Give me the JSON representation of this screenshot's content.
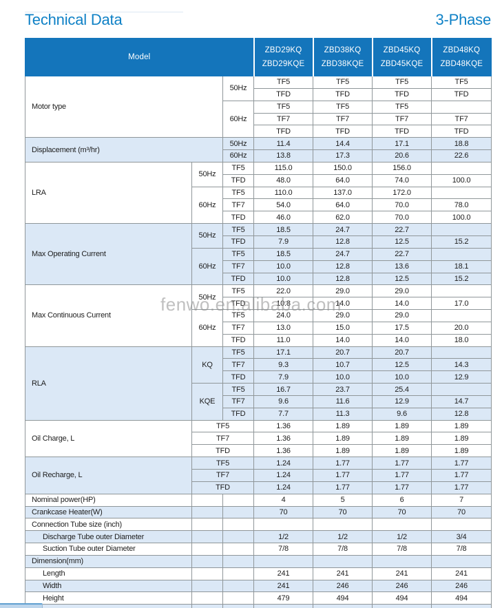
{
  "page": {
    "title": "Technical Data",
    "phase_label": "3-Phase",
    "watermark": "fenwo.en.alibaba.com",
    "colors": {
      "title_blue": "#0f81c6",
      "header_bg": "#1475bb",
      "alt_row_bg": "#dbe8f6",
      "border_gray": "#8f9699"
    }
  },
  "table": {
    "model_header": "Model",
    "model_columns": [
      {
        "line1": "ZBD29KQ",
        "line2": "ZBD29KQE"
      },
      {
        "line1": "ZBD38KQ",
        "line2": "ZBD38KQE"
      },
      {
        "line1": "ZBD45KQ",
        "line2": "ZBD45KQE"
      },
      {
        "line1": "ZBD48KQ",
        "line2": "ZBD48KQE"
      }
    ],
    "rows": [
      {
        "alt": false,
        "cells": [
          {
            "t": "Motor type",
            "cs": 2,
            "rs": 5,
            "k": "label"
          },
          {
            "t": "50Hz",
            "rs": 2,
            "k": "sub"
          },
          {
            "t": "TF5"
          },
          {
            "t": "TF5"
          },
          {
            "t": "TF5"
          },
          {
            "t": "TF5"
          }
        ]
      },
      {
        "alt": false,
        "cells": [
          {
            "t": "TFD"
          },
          {
            "t": "TFD"
          },
          {
            "t": "TFD"
          },
          {
            "t": "TFD"
          }
        ]
      },
      {
        "alt": false,
        "cells": [
          {
            "t": "60Hz",
            "rs": 3,
            "k": "sub"
          },
          {
            "t": "TF5"
          },
          {
            "t": "TF5"
          },
          {
            "t": "TF5"
          },
          {
            "t": ""
          }
        ]
      },
      {
        "alt": false,
        "cells": [
          {
            "t": "TF7"
          },
          {
            "t": "TF7"
          },
          {
            "t": "TF7"
          },
          {
            "t": "TF7"
          }
        ]
      },
      {
        "alt": false,
        "cells": [
          {
            "t": "TFD"
          },
          {
            "t": "TFD"
          },
          {
            "t": "TFD"
          },
          {
            "t": "TFD"
          }
        ]
      },
      {
        "alt": true,
        "cells": [
          {
            "t": "Displacement (m³/hr)",
            "cs": 2,
            "rs": 2,
            "k": "label"
          },
          {
            "t": "50Hz",
            "k": "sub"
          },
          {
            "t": "11.4"
          },
          {
            "t": "14.4"
          },
          {
            "t": "17.1"
          },
          {
            "t": "18.8"
          }
        ]
      },
      {
        "alt": true,
        "cells": [
          {
            "t": "60Hz",
            "k": "sub"
          },
          {
            "t": "13.8"
          },
          {
            "t": "17.3"
          },
          {
            "t": "20.6"
          },
          {
            "t": "22.6"
          }
        ]
      },
      {
        "alt": false,
        "cells": [
          {
            "t": "LRA",
            "rs": 5,
            "k": "label"
          },
          {
            "t": "50Hz",
            "rs": 2,
            "k": "sub"
          },
          {
            "t": "TF5",
            "k": "sub"
          },
          {
            "t": "115.0"
          },
          {
            "t": "150.0"
          },
          {
            "t": "156.0"
          },
          {
            "t": ""
          }
        ]
      },
      {
        "alt": false,
        "cells": [
          {
            "t": "TFD",
            "k": "sub"
          },
          {
            "t": "48.0"
          },
          {
            "t": "64.0"
          },
          {
            "t": "74.0"
          },
          {
            "t": "100.0"
          }
        ]
      },
      {
        "alt": false,
        "cells": [
          {
            "t": "60Hz",
            "rs": 3,
            "k": "sub"
          },
          {
            "t": "TF5",
            "k": "sub"
          },
          {
            "t": "110.0"
          },
          {
            "t": "137.0"
          },
          {
            "t": "172.0"
          },
          {
            "t": ""
          }
        ]
      },
      {
        "alt": false,
        "cells": [
          {
            "t": "TF7",
            "k": "sub"
          },
          {
            "t": "54.0"
          },
          {
            "t": "64.0"
          },
          {
            "t": "70.0"
          },
          {
            "t": "78.0"
          }
        ]
      },
      {
        "alt": false,
        "cells": [
          {
            "t": "TFD",
            "k": "sub"
          },
          {
            "t": "46.0"
          },
          {
            "t": "62.0"
          },
          {
            "t": "70.0"
          },
          {
            "t": "100.0"
          }
        ]
      },
      {
        "alt": true,
        "cells": [
          {
            "t": "Max Operating Current",
            "rs": 5,
            "k": "label"
          },
          {
            "t": "50Hz",
            "rs": 2,
            "k": "sub"
          },
          {
            "t": "TF5",
            "k": "sub"
          },
          {
            "t": "18.5"
          },
          {
            "t": "24.7"
          },
          {
            "t": "22.7"
          },
          {
            "t": ""
          }
        ]
      },
      {
        "alt": true,
        "cells": [
          {
            "t": "TFD",
            "k": "sub"
          },
          {
            "t": "7.9"
          },
          {
            "t": "12.8"
          },
          {
            "t": "12.5"
          },
          {
            "t": "15.2"
          }
        ]
      },
      {
        "alt": true,
        "cells": [
          {
            "t": "60Hz",
            "rs": 3,
            "k": "sub"
          },
          {
            "t": "TF5",
            "k": "sub"
          },
          {
            "t": "18.5"
          },
          {
            "t": "24.7"
          },
          {
            "t": "22.7"
          },
          {
            "t": ""
          }
        ]
      },
      {
        "alt": true,
        "cells": [
          {
            "t": "TF7",
            "k": "sub"
          },
          {
            "t": "10.0"
          },
          {
            "t": "12.8"
          },
          {
            "t": "13.6"
          },
          {
            "t": "18.1"
          }
        ]
      },
      {
        "alt": true,
        "cells": [
          {
            "t": "TFD",
            "k": "sub"
          },
          {
            "t": "10.0"
          },
          {
            "t": "12.8"
          },
          {
            "t": "12.5"
          },
          {
            "t": "15.2"
          }
        ]
      },
      {
        "alt": false,
        "cells": [
          {
            "t": "Max Continuous Current",
            "rs": 5,
            "k": "label"
          },
          {
            "t": "50Hz",
            "rs": 2,
            "k": "sub"
          },
          {
            "t": "TF5",
            "k": "sub"
          },
          {
            "t": "22.0"
          },
          {
            "t": "29.0"
          },
          {
            "t": "29.0"
          },
          {
            "t": ""
          }
        ]
      },
      {
        "alt": false,
        "cells": [
          {
            "t": "TFD",
            "k": "sub"
          },
          {
            "t": "10.8"
          },
          {
            "t": "14.0"
          },
          {
            "t": "14.0"
          },
          {
            "t": "17.0"
          }
        ]
      },
      {
        "alt": false,
        "cells": [
          {
            "t": "60Hz",
            "rs": 3,
            "k": "sub"
          },
          {
            "t": "TF5",
            "k": "sub"
          },
          {
            "t": "24.0"
          },
          {
            "t": "29.0"
          },
          {
            "t": "29.0"
          },
          {
            "t": ""
          }
        ]
      },
      {
        "alt": false,
        "cells": [
          {
            "t": "TF7",
            "k": "sub"
          },
          {
            "t": "13.0"
          },
          {
            "t": "15.0"
          },
          {
            "t": "17.5"
          },
          {
            "t": "20.0"
          }
        ]
      },
      {
        "alt": false,
        "cells": [
          {
            "t": "TFD",
            "k": "sub"
          },
          {
            "t": "11.0"
          },
          {
            "t": "14.0"
          },
          {
            "t": "14.0"
          },
          {
            "t": "18.0"
          }
        ]
      },
      {
        "alt": true,
        "cells": [
          {
            "t": "RLA",
            "rs": 6,
            "k": "label"
          },
          {
            "t": "KQ",
            "rs": 3,
            "k": "sub"
          },
          {
            "t": "TF5",
            "k": "sub"
          },
          {
            "t": "17.1"
          },
          {
            "t": "20.7"
          },
          {
            "t": "20.7"
          },
          {
            "t": ""
          }
        ]
      },
      {
        "alt": true,
        "cells": [
          {
            "t": "TF7",
            "k": "sub"
          },
          {
            "t": "9.3"
          },
          {
            "t": "10.7"
          },
          {
            "t": "12.5"
          },
          {
            "t": "14.3"
          }
        ]
      },
      {
        "alt": true,
        "cells": [
          {
            "t": "TFD",
            "k": "sub"
          },
          {
            "t": "7.9"
          },
          {
            "t": "10.0"
          },
          {
            "t": "10.0"
          },
          {
            "t": "12.9"
          }
        ]
      },
      {
        "alt": true,
        "cells": [
          {
            "t": "KQE",
            "rs": 3,
            "k": "sub"
          },
          {
            "t": "TF5",
            "k": "sub"
          },
          {
            "t": "16.7"
          },
          {
            "t": "23.7"
          },
          {
            "t": "25.4"
          },
          {
            "t": ""
          }
        ]
      },
      {
        "alt": true,
        "cells": [
          {
            "t": "TF7",
            "k": "sub"
          },
          {
            "t": "9.6"
          },
          {
            "t": "11.6"
          },
          {
            "t": "12.9"
          },
          {
            "t": "14.7"
          }
        ]
      },
      {
        "alt": true,
        "cells": [
          {
            "t": "TFD",
            "k": "sub"
          },
          {
            "t": "7.7"
          },
          {
            "t": "11.3"
          },
          {
            "t": "9.6"
          },
          {
            "t": "12.8"
          }
        ]
      },
      {
        "alt": false,
        "cells": [
          {
            "t": "Oil Charge, L",
            "rs": 3,
            "k": "label"
          },
          {
            "t": "TF5",
            "cs": 2,
            "k": "sub"
          },
          {
            "t": "1.36"
          },
          {
            "t": "1.89"
          },
          {
            "t": "1.89"
          },
          {
            "t": "1.89"
          }
        ]
      },
      {
        "alt": false,
        "cells": [
          {
            "t": "TF7",
            "cs": 2,
            "k": "sub"
          },
          {
            "t": "1.36"
          },
          {
            "t": "1.89"
          },
          {
            "t": "1.89"
          },
          {
            "t": "1.89"
          }
        ]
      },
      {
        "alt": false,
        "cells": [
          {
            "t": "TFD",
            "cs": 2,
            "k": "sub"
          },
          {
            "t": "1.36"
          },
          {
            "t": "1.89"
          },
          {
            "t": "1.89"
          },
          {
            "t": "1.89"
          }
        ]
      },
      {
        "alt": true,
        "cells": [
          {
            "t": "Oil Recharge, L",
            "rs": 3,
            "k": "label"
          },
          {
            "t": "TF5",
            "cs": 2,
            "k": "sub"
          },
          {
            "t": "1.24"
          },
          {
            "t": "1.77"
          },
          {
            "t": "1.77"
          },
          {
            "t": "1.77"
          }
        ]
      },
      {
        "alt": true,
        "cells": [
          {
            "t": "TF7",
            "cs": 2,
            "k": "sub"
          },
          {
            "t": "1.24"
          },
          {
            "t": "1.77"
          },
          {
            "t": "1.77"
          },
          {
            "t": "1.77"
          }
        ]
      },
      {
        "alt": true,
        "cells": [
          {
            "t": "TFD",
            "cs": 2,
            "k": "sub"
          },
          {
            "t": "1.24"
          },
          {
            "t": "1.77"
          },
          {
            "t": "1.77"
          },
          {
            "t": "1.77"
          }
        ]
      },
      {
        "alt": false,
        "cells": [
          {
            "t": "Nominal power(HP)",
            "k": "label"
          },
          {
            "t": "",
            "k": "sub"
          },
          {
            "t": "",
            "k": "sub"
          },
          {
            "t": "4"
          },
          {
            "t": "5"
          },
          {
            "t": "6"
          },
          {
            "t": "7"
          }
        ]
      },
      {
        "alt": true,
        "cells": [
          {
            "t": "Crankcase Heater(W)",
            "k": "label"
          },
          {
            "t": "",
            "k": "sub"
          },
          {
            "t": "",
            "k": "sub"
          },
          {
            "t": "70"
          },
          {
            "t": "70"
          },
          {
            "t": "70"
          },
          {
            "t": "70"
          }
        ]
      },
      {
        "alt": false,
        "cells": [
          {
            "t": "Connection Tube size (inch)",
            "k": "label"
          },
          {
            "t": "",
            "k": "sub"
          },
          {
            "t": "",
            "k": "sub"
          },
          {
            "t": ""
          },
          {
            "t": ""
          },
          {
            "t": ""
          },
          {
            "t": ""
          }
        ]
      },
      {
        "alt": true,
        "cells": [
          {
            "t": "Discharge Tube outer Diameter",
            "k": "label-indent"
          },
          {
            "t": "",
            "k": "sub"
          },
          {
            "t": "",
            "k": "sub"
          },
          {
            "t": "1/2"
          },
          {
            "t": "1/2"
          },
          {
            "t": "1/2"
          },
          {
            "t": "3/4"
          }
        ]
      },
      {
        "alt": false,
        "cells": [
          {
            "t": "Suction Tube outer Diameter",
            "k": "label-indent"
          },
          {
            "t": "",
            "k": "sub"
          },
          {
            "t": "",
            "k": "sub"
          },
          {
            "t": "7/8"
          },
          {
            "t": "7/8"
          },
          {
            "t": "7/8"
          },
          {
            "t": "7/8"
          }
        ]
      },
      {
        "alt": true,
        "cells": [
          {
            "t": "Dimension(mm)",
            "k": "label"
          },
          {
            "t": "",
            "k": "sub"
          },
          {
            "t": "",
            "k": "sub"
          },
          {
            "t": ""
          },
          {
            "t": ""
          },
          {
            "t": ""
          },
          {
            "t": ""
          }
        ]
      },
      {
        "alt": false,
        "cells": [
          {
            "t": "Length",
            "k": "label-indent"
          },
          {
            "t": "",
            "k": "sub"
          },
          {
            "t": "",
            "k": "sub"
          },
          {
            "t": "241"
          },
          {
            "t": "241"
          },
          {
            "t": "241"
          },
          {
            "t": "241"
          }
        ]
      },
      {
        "alt": true,
        "cells": [
          {
            "t": "Width",
            "k": "label-indent"
          },
          {
            "t": "",
            "k": "sub"
          },
          {
            "t": "",
            "k": "sub"
          },
          {
            "t": "241"
          },
          {
            "t": "246"
          },
          {
            "t": "246"
          },
          {
            "t": "246"
          }
        ]
      },
      {
        "alt": false,
        "cells": [
          {
            "t": "Height",
            "k": "label-indent"
          },
          {
            "t": "",
            "k": "sub"
          },
          {
            "t": "",
            "k": "sub"
          },
          {
            "t": "479"
          },
          {
            "t": "494"
          },
          {
            "t": "494"
          },
          {
            "t": "494"
          }
        ]
      },
      {
        "alt": true,
        "partial": true,
        "cells": [
          {
            "t": "",
            "k": "label"
          },
          {
            "t": "",
            "k": "sub"
          },
          {
            "t": "",
            "k": "sub"
          },
          {
            "t": ""
          },
          {
            "t": ""
          },
          {
            "t": ""
          },
          {
            "t": ""
          }
        ]
      }
    ]
  }
}
